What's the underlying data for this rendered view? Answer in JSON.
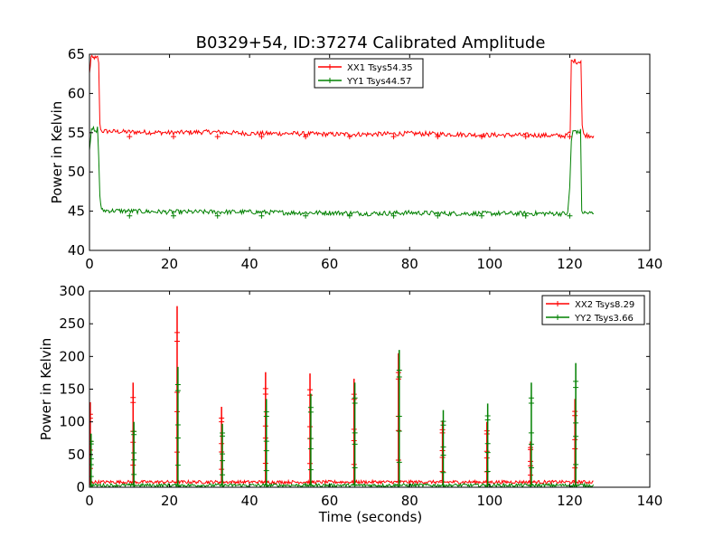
{
  "figure": {
    "title": "B0329+54, ID:37274 Calibrated Amplitude",
    "xlabel": "Time (seconds)"
  },
  "chart_data": [
    {
      "type": "line",
      "title": "B0329+54, ID:37274 Calibrated Amplitude",
      "xlabel": "",
      "ylabel": "Power in Kelvin",
      "xlim": [
        0,
        140
      ],
      "ylim": [
        40,
        65
      ],
      "xticks": [
        "0",
        "20",
        "40",
        "60",
        "80",
        "100",
        "120",
        "140"
      ],
      "yticks": [
        "40",
        "45",
        "50",
        "55",
        "60",
        "65"
      ],
      "legend": {
        "position": "top-center"
      },
      "grid": false,
      "series": [
        {
          "name": "XX1 Tsys54.35",
          "color": "#ff0000",
          "x": [
            0,
            0.4,
            0.8,
            1.2,
            1.6,
            2.0,
            2.3,
            2.6,
            3.0,
            10,
            20,
            30,
            40,
            50,
            60,
            70,
            80,
            90,
            100,
            110,
            119,
            120.1,
            120.4,
            121,
            122,
            122.8,
            123.1,
            123.5,
            126
          ],
          "y": [
            62.5,
            64.6,
            64.5,
            64.6,
            64.4,
            64.6,
            64,
            56,
            55.2,
            55.1,
            55.0,
            55.1,
            54.9,
            54.9,
            54.8,
            54.8,
            54.9,
            54.8,
            54.7,
            54.7,
            54.6,
            55,
            64.1,
            64.2,
            64.0,
            64.2,
            56,
            54.7,
            54.6
          ]
        },
        {
          "name": "YY1 Tsys44.57",
          "color": "#008000",
          "x": [
            0,
            0.5,
            1,
            1.5,
            2,
            2.3,
            2.6,
            3.0,
            10,
            20,
            30,
            40,
            50,
            60,
            70,
            80,
            90,
            100,
            110,
            119.5,
            120.0,
            120.4,
            120.8,
            121.5,
            122.0,
            122.7,
            123.0,
            123.5,
            126
          ],
          "y": [
            53,
            55.2,
            55.5,
            55.0,
            55.6,
            52,
            47,
            45.1,
            45.0,
            44.9,
            44.9,
            44.9,
            44.8,
            44.8,
            44.7,
            44.8,
            44.7,
            44.7,
            44.7,
            44.7,
            48,
            54,
            55.1,
            55.3,
            55.0,
            55.2,
            45,
            44.8,
            44.7
          ]
        }
      ]
    },
    {
      "type": "line",
      "title": "",
      "xlabel": "Time (seconds)",
      "ylabel": "Power in Kelvin",
      "xlim": [
        0,
        140
      ],
      "ylim": [
        0,
        300
      ],
      "xticks": [
        "0",
        "20",
        "40",
        "60",
        "80",
        "100",
        "120",
        "140"
      ],
      "yticks": [
        "0",
        "50",
        "100",
        "150",
        "200",
        "250",
        "300"
      ],
      "legend": {
        "position": "top-right"
      },
      "grid": false,
      "baseline_x": [
        0.3,
        126
      ],
      "series": [
        {
          "name": "XX2 Tsys8.29",
          "color": "#ff0000",
          "baseline": 8,
          "spikes_x": [
            0.2,
            10.9,
            21.9,
            33.0,
            44.0,
            55.1,
            66.1,
            77.2,
            88.2,
            99.3,
            110.2,
            121.3
          ],
          "spikes_y": [
            130,
            160,
            277,
            123,
            176,
            174,
            166,
            205,
            102,
            100,
            70,
            135
          ]
        },
        {
          "name": "YY2 Tsys3.66",
          "color": "#008000",
          "baseline": 3,
          "spikes_x": [
            0.4,
            11.1,
            22.1,
            33.2,
            44.2,
            55.3,
            66.3,
            77.4,
            88.4,
            99.5,
            110.4,
            121.5
          ],
          "spikes_y": [
            82,
            100,
            184,
            97,
            135,
            143,
            160,
            210,
            118,
            128,
            160,
            190
          ]
        }
      ]
    }
  ]
}
